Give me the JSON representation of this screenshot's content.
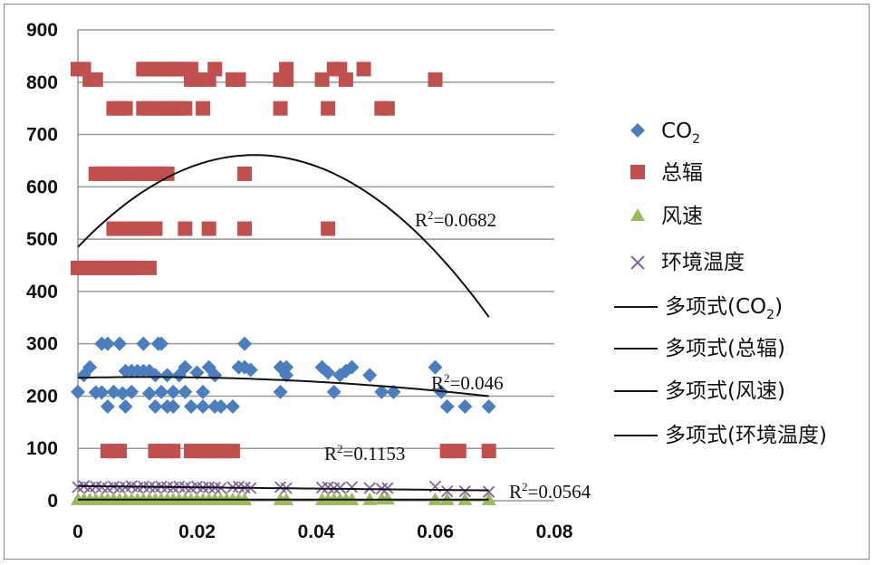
{
  "chart_data": {
    "type": "scatter",
    "xlim": [
      0,
      0.08
    ],
    "ylim": [
      0,
      900
    ],
    "x_ticks": [
      "0",
      "0.02",
      "0.04",
      "0.06",
      "0.08"
    ],
    "y_ticks": [
      "0",
      "100",
      "200",
      "300",
      "400",
      "500",
      "600",
      "700",
      "800",
      "900"
    ],
    "grid": "horizontal",
    "legend_position": "right",
    "series": [
      {
        "name": "CO2",
        "legend_main": "CO",
        "legend_sub": "2",
        "marker": "diamond",
        "color": "#4a7ebf",
        "points": [
          [
            0.0,
            208
          ],
          [
            0.001,
            240
          ],
          [
            0.002,
            255
          ],
          [
            0.003,
            207
          ],
          [
            0.004,
            300
          ],
          [
            0.004,
            207
          ],
          [
            0.005,
            300
          ],
          [
            0.005,
            180
          ],
          [
            0.006,
            208
          ],
          [
            0.007,
            300
          ],
          [
            0.0075,
            205
          ],
          [
            0.008,
            180
          ],
          [
            0.008,
            248
          ],
          [
            0.009,
            248
          ],
          [
            0.009,
            208
          ],
          [
            0.01,
            248
          ],
          [
            0.011,
            300
          ],
          [
            0.011,
            248
          ],
          [
            0.012,
            205
          ],
          [
            0.012,
            248
          ],
          [
            0.013,
            180
          ],
          [
            0.013,
            240
          ],
          [
            0.0135,
            300
          ],
          [
            0.014,
            300
          ],
          [
            0.014,
            208
          ],
          [
            0.015,
            180
          ],
          [
            0.015,
            240
          ],
          [
            0.016,
            180
          ],
          [
            0.016,
            208
          ],
          [
            0.017,
            240
          ],
          [
            0.018,
            255
          ],
          [
            0.018,
            208
          ],
          [
            0.019,
            180
          ],
          [
            0.02,
            245
          ],
          [
            0.021,
            208
          ],
          [
            0.021,
            180
          ],
          [
            0.022,
            255
          ],
          [
            0.023,
            240
          ],
          [
            0.023,
            180
          ],
          [
            0.024,
            180
          ],
          [
            0.026,
            180
          ],
          [
            0.027,
            255
          ],
          [
            0.028,
            300
          ],
          [
            0.028,
            255
          ],
          [
            0.029,
            250
          ],
          [
            0.034,
            208
          ],
          [
            0.034,
            255
          ],
          [
            0.035,
            240
          ],
          [
            0.035,
            255
          ],
          [
            0.041,
            255
          ],
          [
            0.042,
            245
          ],
          [
            0.043,
            208
          ],
          [
            0.044,
            240
          ],
          [
            0.045,
            248
          ],
          [
            0.046,
            255
          ],
          [
            0.049,
            240
          ],
          [
            0.051,
            208
          ],
          [
            0.053,
            208
          ],
          [
            0.06,
            255
          ],
          [
            0.061,
            208
          ],
          [
            0.062,
            180
          ],
          [
            0.065,
            180
          ],
          [
            0.069,
            180
          ]
        ]
      },
      {
        "name": "总辐",
        "legend_main": "总辐",
        "legend_sub": "",
        "marker": "square",
        "color": "#c0504d",
        "points": [
          [
            0.0,
            825
          ],
          [
            0.001,
            825
          ],
          [
            0.002,
            805
          ],
          [
            0.003,
            805
          ],
          [
            0.0,
            445
          ],
          [
            0.001,
            445
          ],
          [
            0.002,
            445
          ],
          [
            0.003,
            445
          ],
          [
            0.004,
            445
          ],
          [
            0.005,
            445
          ],
          [
            0.006,
            445
          ],
          [
            0.007,
            445
          ],
          [
            0.008,
            445
          ],
          [
            0.009,
            445
          ],
          [
            0.01,
            445
          ],
          [
            0.012,
            445
          ],
          [
            0.003,
            625
          ],
          [
            0.004,
            625
          ],
          [
            0.005,
            625
          ],
          [
            0.006,
            625
          ],
          [
            0.007,
            625
          ],
          [
            0.008,
            625
          ],
          [
            0.01,
            625
          ],
          [
            0.011,
            625
          ],
          [
            0.012,
            625
          ],
          [
            0.013,
            625
          ],
          [
            0.014,
            625
          ],
          [
            0.015,
            625
          ],
          [
            0.006,
            750
          ],
          [
            0.007,
            750
          ],
          [
            0.008,
            750
          ],
          [
            0.011,
            750
          ],
          [
            0.012,
            750
          ],
          [
            0.013,
            750
          ],
          [
            0.014,
            750
          ],
          [
            0.015,
            750
          ],
          [
            0.016,
            750
          ],
          [
            0.017,
            750
          ],
          [
            0.018,
            750
          ],
          [
            0.021,
            750
          ],
          [
            0.006,
            520
          ],
          [
            0.007,
            520
          ],
          [
            0.008,
            520
          ],
          [
            0.009,
            520
          ],
          [
            0.01,
            520
          ],
          [
            0.011,
            520
          ],
          [
            0.012,
            520
          ],
          [
            0.013,
            520
          ],
          [
            0.018,
            520
          ],
          [
            0.022,
            520
          ],
          [
            0.028,
            520
          ],
          [
            0.042,
            520
          ],
          [
            0.011,
            825
          ],
          [
            0.012,
            825
          ],
          [
            0.013,
            825
          ],
          [
            0.014,
            825
          ],
          [
            0.015,
            825
          ],
          [
            0.016,
            825
          ],
          [
            0.017,
            825
          ],
          [
            0.018,
            825
          ],
          [
            0.019,
            825
          ],
          [
            0.019,
            805
          ],
          [
            0.02,
            805
          ],
          [
            0.022,
            805
          ],
          [
            0.023,
            825
          ],
          [
            0.026,
            805
          ],
          [
            0.027,
            805
          ],
          [
            0.028,
            625
          ],
          [
            0.005,
            95
          ],
          [
            0.006,
            95
          ],
          [
            0.007,
            95
          ],
          [
            0.013,
            95
          ],
          [
            0.014,
            95
          ],
          [
            0.015,
            95
          ],
          [
            0.016,
            95
          ],
          [
            0.019,
            95
          ],
          [
            0.02,
            95
          ],
          [
            0.021,
            95
          ],
          [
            0.022,
            95
          ],
          [
            0.023,
            95
          ],
          [
            0.024,
            95
          ],
          [
            0.025,
            95
          ],
          [
            0.026,
            95
          ],
          [
            0.034,
            805
          ],
          [
            0.035,
            825
          ],
          [
            0.035,
            805
          ],
          [
            0.034,
            750
          ],
          [
            0.041,
            805
          ],
          [
            0.042,
            750
          ],
          [
            0.043,
            825
          ],
          [
            0.044,
            825
          ],
          [
            0.045,
            805
          ],
          [
            0.048,
            825
          ],
          [
            0.051,
            750
          ],
          [
            0.052,
            750
          ],
          [
            0.06,
            805
          ],
          [
            0.062,
            95
          ],
          [
            0.063,
            95
          ],
          [
            0.064,
            95
          ],
          [
            0.069,
            95
          ]
        ]
      },
      {
        "name": "风速",
        "legend_main": "风速",
        "legend_sub": "",
        "marker": "triangle",
        "color": "#9bbb59",
        "points": [
          [
            0.0,
            2
          ],
          [
            0.001,
            2
          ],
          [
            0.002,
            2
          ],
          [
            0.003,
            2
          ],
          [
            0.004,
            2
          ],
          [
            0.005,
            2
          ],
          [
            0.006,
            2
          ],
          [
            0.007,
            2
          ],
          [
            0.008,
            2
          ],
          [
            0.009,
            2
          ],
          [
            0.01,
            2
          ],
          [
            0.011,
            2
          ],
          [
            0.012,
            2
          ],
          [
            0.013,
            2
          ],
          [
            0.014,
            2
          ],
          [
            0.015,
            2
          ],
          [
            0.016,
            2
          ],
          [
            0.017,
            2
          ],
          [
            0.018,
            2
          ],
          [
            0.019,
            2
          ],
          [
            0.02,
            2
          ],
          [
            0.021,
            2
          ],
          [
            0.022,
            2
          ],
          [
            0.023,
            2
          ],
          [
            0.024,
            2
          ],
          [
            0.025,
            2
          ],
          [
            0.026,
            2
          ],
          [
            0.027,
            2
          ],
          [
            0.028,
            2
          ],
          [
            0.034,
            2
          ],
          [
            0.035,
            2
          ],
          [
            0.041,
            2
          ],
          [
            0.042,
            2
          ],
          [
            0.043,
            2
          ],
          [
            0.044,
            2
          ],
          [
            0.045,
            2
          ],
          [
            0.046,
            2
          ],
          [
            0.049,
            2
          ],
          [
            0.051,
            3
          ],
          [
            0.052,
            3
          ],
          [
            0.06,
            2
          ],
          [
            0.062,
            2
          ],
          [
            0.065,
            2
          ],
          [
            0.069,
            2
          ]
        ]
      },
      {
        "name": "环境温度",
        "legend_main": "环境温度",
        "legend_sub": "",
        "marker": "x",
        "color": "#8064a2",
        "points": [
          [
            0.0,
            26
          ],
          [
            0.001,
            28
          ],
          [
            0.002,
            25
          ],
          [
            0.003,
            27
          ],
          [
            0.004,
            26
          ],
          [
            0.005,
            24
          ],
          [
            0.006,
            27
          ],
          [
            0.007,
            25
          ],
          [
            0.008,
            26
          ],
          [
            0.009,
            28
          ],
          [
            0.01,
            25
          ],
          [
            0.011,
            27
          ],
          [
            0.012,
            26
          ],
          [
            0.013,
            25
          ],
          [
            0.014,
            27
          ],
          [
            0.015,
            26
          ],
          [
            0.016,
            25
          ],
          [
            0.017,
            27
          ],
          [
            0.018,
            26
          ],
          [
            0.019,
            24
          ],
          [
            0.02,
            27
          ],
          [
            0.021,
            25
          ],
          [
            0.022,
            26
          ],
          [
            0.023,
            25
          ],
          [
            0.024,
            24
          ],
          [
            0.026,
            26
          ],
          [
            0.027,
            27
          ],
          [
            0.028,
            25
          ],
          [
            0.029,
            24
          ],
          [
            0.034,
            26
          ],
          [
            0.035,
            24
          ],
          [
            0.041,
            25
          ],
          [
            0.042,
            26
          ],
          [
            0.043,
            24
          ],
          [
            0.044,
            25
          ],
          [
            0.046,
            26
          ],
          [
            0.049,
            24
          ],
          [
            0.051,
            23
          ],
          [
            0.052,
            24
          ],
          [
            0.06,
            27
          ],
          [
            0.062,
            18
          ],
          [
            0.065,
            18
          ],
          [
            0.069,
            17
          ]
        ]
      }
    ],
    "trendlines": [
      {
        "name": "多项式(CO2)",
        "legend_main": "多项式(CO",
        "legend_sub": "2",
        "legend_tail": ")",
        "r2_label": "R",
        "r2_sup": "2",
        "r2_value": "=0.046",
        "coeffs": [
          235,
          250,
          -11000
        ],
        "x_range": [
          0,
          0.069
        ]
      },
      {
        "name": "多项式(总辐)",
        "legend_main": "多项式(总辐)",
        "legend_sub": "",
        "legend_tail": "",
        "r2_label": "R",
        "r2_sup": "2",
        "r2_value": "=0.0682",
        "coeffs": [
          485,
          11860,
          -200000
        ],
        "x_range": [
          0,
          0.069
        ]
      },
      {
        "name": "多项式(风速)",
        "legend_main": "多项式(风速)",
        "legend_sub": "",
        "legend_tail": "",
        "r2_label": "R",
        "r2_sup": "2",
        "r2_value": "=0.1153",
        "coeffs": [
          2,
          0,
          0
        ],
        "x_range": [
          0,
          0.069
        ]
      },
      {
        "name": "多项式(环境温度)",
        "legend_main": "多项式(环境温度)",
        "legend_sub": "",
        "legend_tail": "",
        "r2_label": "R",
        "r2_sup": "2",
        "r2_value": "=0.0564",
        "coeffs": [
          28,
          -120,
          0
        ],
        "x_range": [
          0,
          0.069
        ]
      }
    ]
  }
}
